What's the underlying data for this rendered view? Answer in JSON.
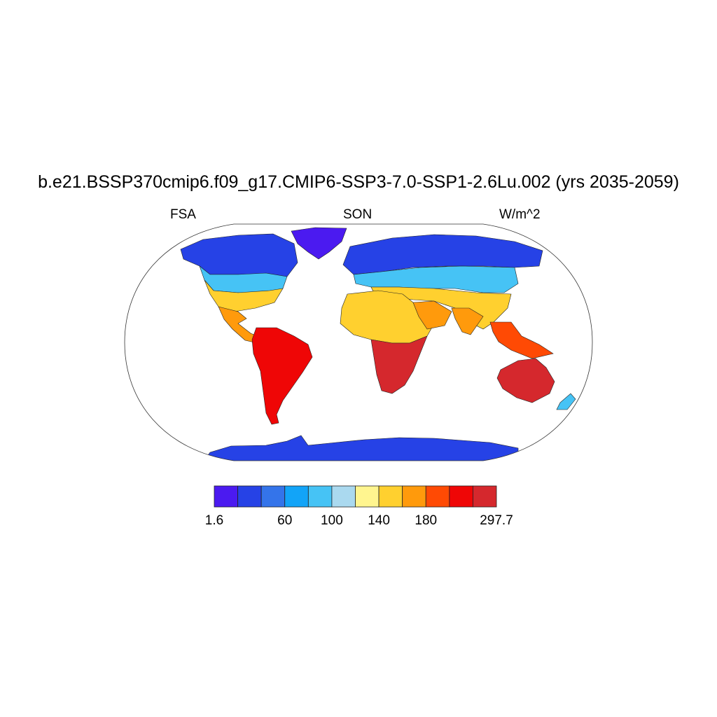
{
  "title": "b.e21.BSSP370cmip6.f09_g17.CMIP6-SSP3-7.0-SSP1-2.6Lu.002 (yrs 2035-2059)",
  "left_label": "FSA",
  "center_label": "SON",
  "right_label": "W/m^2",
  "colorbar": {
    "colors": [
      "#4b1af0",
      "#2642e6",
      "#3474ea",
      "#12a4f8",
      "#46c3f5",
      "#aad9ef",
      "#fff58f",
      "#ffd02f",
      "#ff9a0c",
      "#ff4a04",
      "#ef0606",
      "#d5282d"
    ],
    "labels": [
      {
        "text": "1.6",
        "index": 0
      },
      {
        "text": "60",
        "index": 3
      },
      {
        "text": "100",
        "index": 5
      },
      {
        "text": "140",
        "index": 7
      },
      {
        "text": "180",
        "index": 9
      },
      {
        "text": "297.7",
        "index": 12
      }
    ]
  },
  "map_regions": [
    {
      "name": "antarctica",
      "color": "#2642e6"
    },
    {
      "name": "greenland",
      "color": "#4b1af0"
    },
    {
      "name": "north-america-north",
      "color": "#2642e6"
    },
    {
      "name": "north-america-mid",
      "color": "#46c3f5"
    },
    {
      "name": "north-america-south",
      "color": "#ffd02f"
    },
    {
      "name": "central-america",
      "color": "#ff9a0c"
    },
    {
      "name": "south-america",
      "color": "#ef0606"
    },
    {
      "name": "eurasia-north",
      "color": "#2642e6"
    },
    {
      "name": "eurasia-mid",
      "color": "#46c3f5"
    },
    {
      "name": "eurasia-south",
      "color": "#ffd02f"
    },
    {
      "name": "africa-north",
      "color": "#ffd02f"
    },
    {
      "name": "africa-south",
      "color": "#d5282d"
    },
    {
      "name": "arabia",
      "color": "#ff9a0c"
    },
    {
      "name": "india",
      "color": "#ff9a0c"
    },
    {
      "name": "southeast-asia",
      "color": "#ff4a04"
    },
    {
      "name": "australia",
      "color": "#d5282d"
    },
    {
      "name": "new-zealand",
      "color": "#46c3f5"
    }
  ]
}
